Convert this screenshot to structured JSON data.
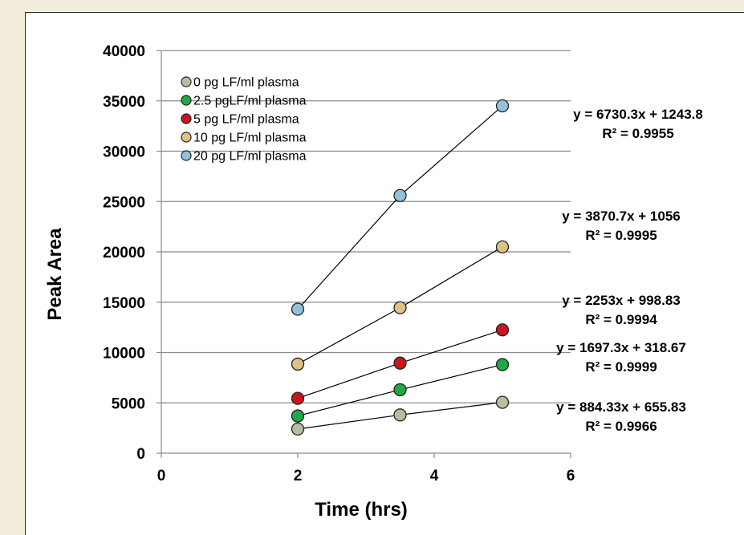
{
  "chart_data": {
    "type": "scatter",
    "xlabel": "Time (hrs)",
    "ylabel": "Peak Area",
    "xlim": [
      0,
      6
    ],
    "ylim": [
      0,
      40000
    ],
    "xticks": [
      0,
      2,
      4,
      6
    ],
    "yticks": [
      0,
      5000,
      10000,
      15000,
      20000,
      25000,
      30000,
      35000,
      40000
    ],
    "grid": "horizontal",
    "legend_position": "top-left",
    "series": [
      {
        "name": "0 pg LF/ml plasma",
        "color": "#b5bfa0",
        "x": [
          2,
          3.5,
          5
        ],
        "y": [
          2400,
          3800,
          5050
        ],
        "trend_equation": "y = 884.33x + 655.83",
        "r2": "R² = 0.9966"
      },
      {
        "name": "2.5 pgLF/ml plasma",
        "color": "#1fa846",
        "x": [
          2,
          3.5,
          5
        ],
        "y": [
          3700,
          6300,
          8800
        ],
        "trend_equation": "y = 1697.3x + 318.67",
        "r2": "R² = 0.9999"
      },
      {
        "name": "5 pg LF/ml plasma",
        "color": "#c8161e",
        "x": [
          2,
          3.5,
          5
        ],
        "y": [
          5450,
          8950,
          12250
        ],
        "trend_equation": "y = 2253x + 998.83",
        "r2": "R² = 0.9994"
      },
      {
        "name": "10 pg LF/ml plasma",
        "color": "#dcc383",
        "x": [
          2,
          3.5,
          5
        ],
        "y": [
          8850,
          14450,
          20500
        ],
        "trend_equation": "y = 3870.7x + 1056",
        "r2": "R² = 0.9995"
      },
      {
        "name": "20 pg LF/ml plasma",
        "color": "#90c2dc",
        "x": [
          2,
          3.5,
          5
        ],
        "y": [
          14300,
          25600,
          34500
        ],
        "trend_equation": "y = 6730.3x + 1243.8",
        "r2": "R² = 0.9955"
      }
    ]
  }
}
